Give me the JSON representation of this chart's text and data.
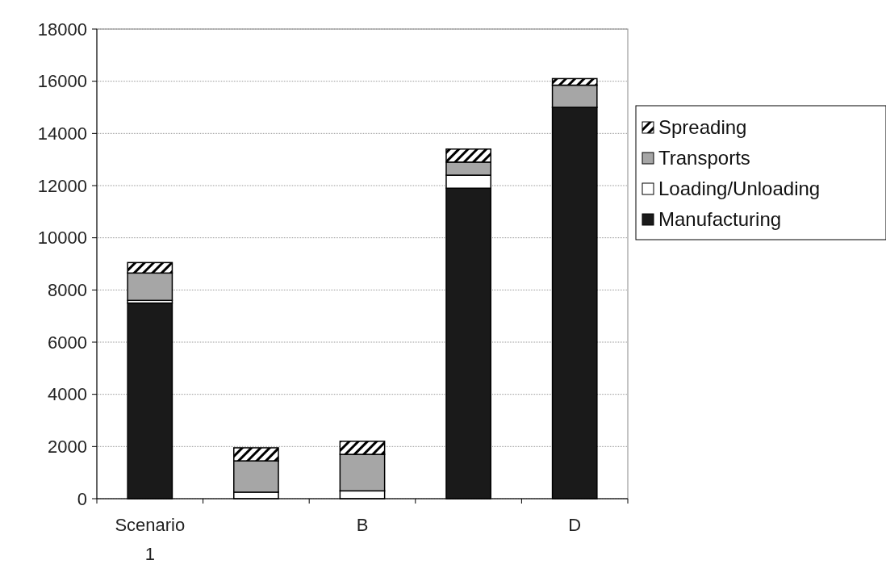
{
  "chart_data": {
    "type": "bar",
    "stacked": true,
    "categories": [
      "Scenario 1",
      null,
      "B",
      null,
      "D"
    ],
    "series": [
      {
        "name": "Manufacturing",
        "color": "#1a1a1a",
        "values": [
          7500,
          0,
          0,
          11900,
          15000
        ]
      },
      {
        "name": "Loading/Unloading",
        "color": "#ffffff",
        "values": [
          100,
          250,
          300,
          500,
          0
        ]
      },
      {
        "name": "Transports",
        "color": "#a6a6a6",
        "values": [
          1050,
          1200,
          1400,
          500,
          850
        ]
      },
      {
        "name": "Spreading",
        "color": "#000000",
        "values": [
          400,
          500,
          500,
          500,
          250
        ]
      }
    ],
    "ylim": [
      0,
      18000
    ],
    "yticks": [
      0,
      2000,
      4000,
      6000,
      8000,
      10000,
      12000,
      14000,
      16000,
      18000
    ],
    "grid": "y",
    "legend": "right"
  }
}
